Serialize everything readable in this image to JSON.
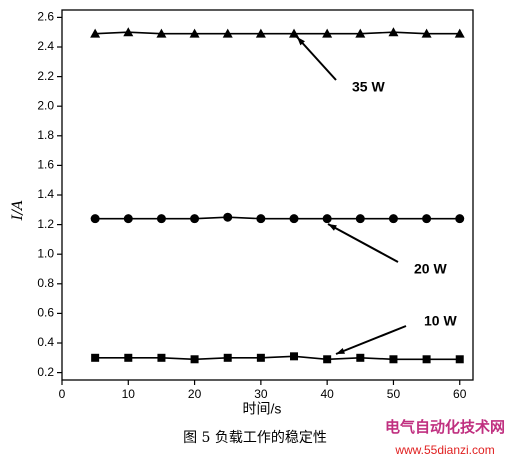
{
  "chart_data": {
    "type": "line",
    "xlabel": "时间/s",
    "ylabel": "I/A",
    "x": [
      5,
      10,
      15,
      20,
      25,
      30,
      35,
      40,
      45,
      50,
      55,
      60
    ],
    "series": [
      {
        "name": "35 W",
        "color": "#000000",
        "marker": "triangle",
        "values": [
          2.49,
          2.5,
          2.49,
          2.49,
          2.49,
          2.49,
          2.49,
          2.49,
          2.49,
          2.5,
          2.49,
          2.49
        ]
      },
      {
        "name": "20 W",
        "color": "#000000",
        "marker": "circle",
        "values": [
          1.24,
          1.24,
          1.24,
          1.24,
          1.25,
          1.24,
          1.24,
          1.24,
          1.24,
          1.24,
          1.24,
          1.24
        ]
      },
      {
        "name": "10 W",
        "color": "#000000",
        "marker": "square",
        "values": [
          0.3,
          0.3,
          0.3,
          0.29,
          0.3,
          0.3,
          0.31,
          0.29,
          0.3,
          0.29,
          0.29,
          0.29
        ]
      }
    ],
    "xlim": [
      0,
      62
    ],
    "xticks": [
      0,
      10,
      20,
      30,
      40,
      50,
      60
    ],
    "ylim": [
      0.15,
      2.65
    ],
    "yticks": [
      0.2,
      0.4,
      0.6,
      0.8,
      {
        "value": 1,
        "label": "1.0"
      },
      1.2,
      1.4,
      1.6,
      1.8,
      {
        "value": 2,
        "label": "2.0"
      },
      2.2,
      2.4,
      2.6
    ],
    "grid": false
  },
  "caption": "图 5  负载工作的稳定性",
  "watermark": {
    "title": "电气自动化技术网",
    "url": "www.55dianzi.com"
  }
}
